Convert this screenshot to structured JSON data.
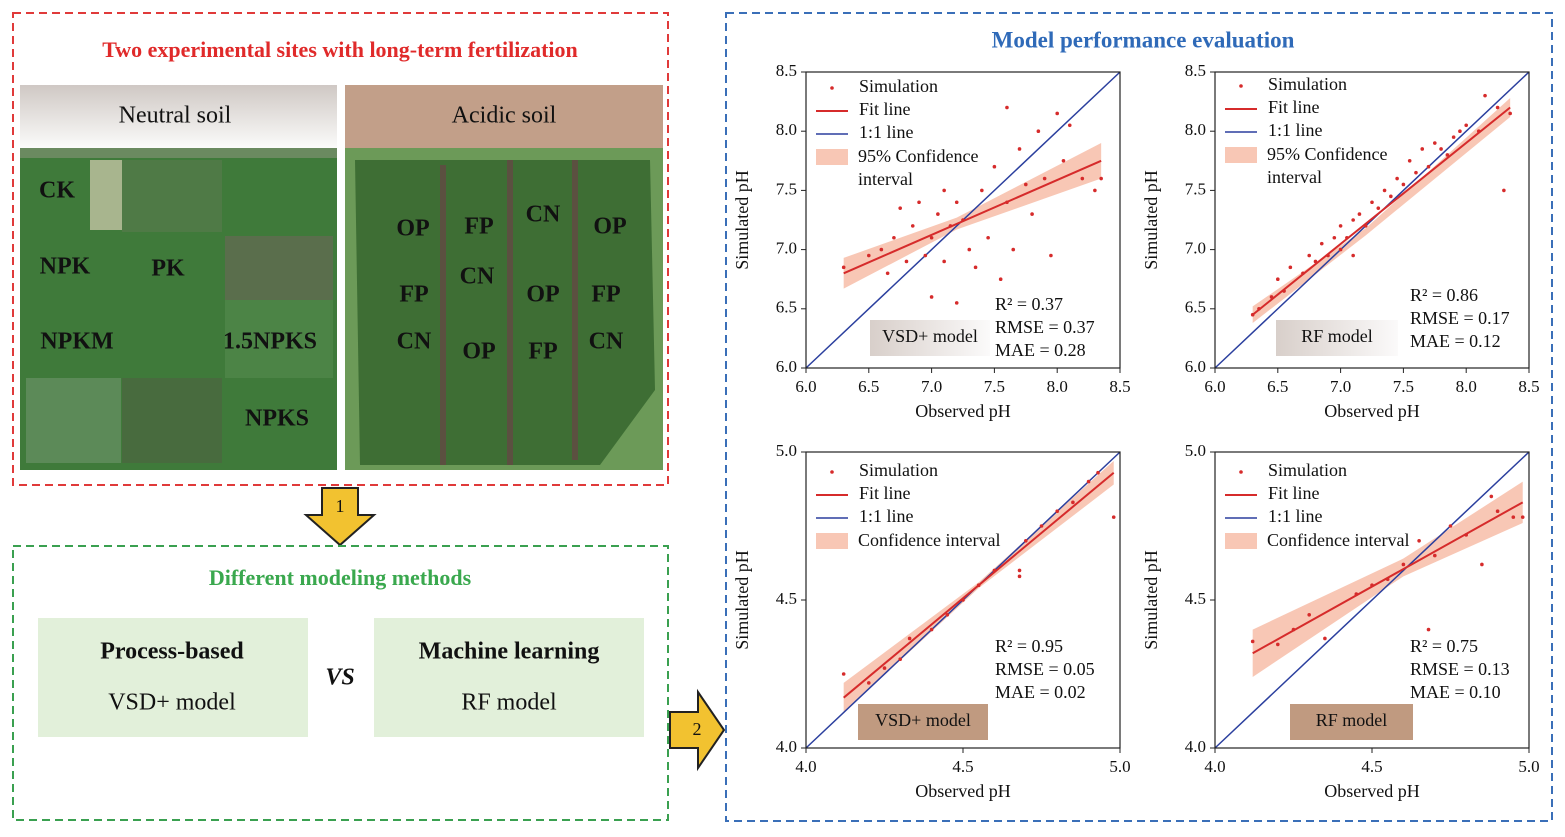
{
  "left_panel": {
    "title": "Two experimental sites with long-term fertilization",
    "sites": [
      {
        "header": "Neutral soil",
        "plots": [
          "CK",
          "NPK",
          "PK",
          "NPKM",
          "1.5NPKS",
          "NPKS"
        ]
      },
      {
        "header": "Acidic soil",
        "plots": [
          "OP",
          "FP",
          "CN",
          "OP",
          "CN",
          "FP",
          "OP",
          "FP",
          "CN",
          "OP",
          "FP",
          "CN"
        ]
      }
    ]
  },
  "arrows": [
    "1",
    "2"
  ],
  "methods_panel": {
    "title": "Different modeling methods",
    "separator": "VS",
    "methods": [
      {
        "title": "Process-based",
        "model": "VSD+ model"
      },
      {
        "title": "Machine learning",
        "model": "RF model"
      }
    ]
  },
  "right_panel": {
    "title": "Model performance evaluation"
  },
  "chart_data": [
    {
      "type": "scatter",
      "xlabel": "Observed pH",
      "ylabel": "Simulated pH",
      "model_label": "VSD+ model",
      "stats": [
        "R² = 0.37",
        "RMSE = 0.37",
        "MAE = 0.28"
      ],
      "xlim": [
        6.0,
        8.5
      ],
      "ylim": [
        6.0,
        8.5
      ],
      "xticks": [
        {
          "value": 6,
          "label": "6.0"
        },
        {
          "value": 6.5,
          "label": "6.5"
        },
        {
          "value": 7,
          "label": "7.0"
        },
        {
          "value": 7.5,
          "label": "7.5"
        },
        {
          "value": 8,
          "label": "8.0"
        },
        {
          "value": 8.5,
          "label": "8.5"
        }
      ],
      "yticks": [
        {
          "value": 6,
          "label": "6.0"
        },
        {
          "value": 6.5,
          "label": "6.5"
        },
        {
          "value": 7,
          "label": "7.0"
        },
        {
          "value": 7.5,
          "label": "7.5"
        },
        {
          "value": 8,
          "label": "8.0"
        },
        {
          "value": 8.5,
          "label": "8.5"
        }
      ],
      "series": [
        {
          "name": "Simulation",
          "color": "#d62b2b",
          "x": [
            6.3,
            6.5,
            6.6,
            6.65,
            6.7,
            6.75,
            6.8,
            6.85,
            6.9,
            6.95,
            7.0,
            7.0,
            7.05,
            7.1,
            7.1,
            7.15,
            7.2,
            7.2,
            7.25,
            7.3,
            7.35,
            7.4,
            7.45,
            7.5,
            7.55,
            7.6,
            7.6,
            7.65,
            7.7,
            7.75,
            7.8,
            7.85,
            7.9,
            7.95,
            8.0,
            8.05,
            8.1,
            8.2,
            8.3,
            8.35
          ],
          "values": [
            6.85,
            6.95,
            7.0,
            6.8,
            7.1,
            7.35,
            6.9,
            7.2,
            7.4,
            6.95,
            7.1,
            6.6,
            7.3,
            7.5,
            6.9,
            7.2,
            6.55,
            7.4,
            7.25,
            7.0,
            6.85,
            7.5,
            7.1,
            7.7,
            6.75,
            8.2,
            7.4,
            7.0,
            7.85,
            7.55,
            7.3,
            8.0,
            7.6,
            6.95,
            8.15,
            7.75,
            8.05,
            7.6,
            7.5,
            7.6
          ]
        }
      ],
      "fit_line": {
        "name": "Fit line",
        "color": "#d62b2b",
        "x": [
          6.3,
          8.35
        ],
        "values": [
          6.8,
          7.75
        ]
      },
      "identity_line": {
        "name": "1:1 line",
        "color": "#2b3f9e"
      },
      "band": {
        "name": "95% Confidence interval",
        "color": "#f5b49c",
        "x": [
          6.3,
          7.2,
          8.35
        ],
        "lower": [
          6.67,
          7.17,
          7.6
        ],
        "upper": [
          6.93,
          7.27,
          7.9
        ]
      }
    },
    {
      "type": "scatter",
      "xlabel": "Observed pH",
      "ylabel": "Simulated pH",
      "model_label": "RF model",
      "stats": [
        "R² = 0.86",
        "RMSE = 0.17",
        "MAE = 0.12"
      ],
      "xlim": [
        6.0,
        8.5
      ],
      "ylim": [
        6.0,
        8.5
      ],
      "xticks": [
        {
          "value": 6,
          "label": "6.0"
        },
        {
          "value": 6.5,
          "label": "6.5"
        },
        {
          "value": 7,
          "label": "7.0"
        },
        {
          "value": 7.5,
          "label": "7.5"
        },
        {
          "value": 8,
          "label": "8.0"
        },
        {
          "value": 8.5,
          "label": "8.5"
        }
      ],
      "yticks": [
        {
          "value": 6,
          "label": "6.0"
        },
        {
          "value": 6.5,
          "label": "6.5"
        },
        {
          "value": 7,
          "label": "7.0"
        },
        {
          "value": 7.5,
          "label": "7.5"
        },
        {
          "value": 8,
          "label": "8.0"
        },
        {
          "value": 8.5,
          "label": "8.5"
        }
      ],
      "series": [
        {
          "name": "Simulation",
          "color": "#d62b2b",
          "x": [
            6.3,
            6.35,
            6.45,
            6.5,
            6.55,
            6.6,
            6.7,
            6.75,
            6.8,
            6.85,
            6.9,
            6.95,
            7.0,
            7.0,
            7.05,
            7.1,
            7.1,
            7.15,
            7.2,
            7.25,
            7.3,
            7.35,
            7.4,
            7.45,
            7.5,
            7.55,
            7.6,
            7.65,
            7.7,
            7.75,
            7.8,
            7.85,
            7.9,
            7.95,
            8.0,
            8.1,
            8.15,
            8.25,
            8.3,
            8.35
          ],
          "values": [
            6.45,
            6.5,
            6.6,
            6.75,
            6.65,
            6.85,
            6.8,
            6.95,
            6.9,
            7.05,
            6.95,
            7.1,
            7.0,
            7.2,
            7.1,
            6.95,
            7.25,
            7.3,
            7.2,
            7.4,
            7.35,
            7.5,
            7.45,
            7.6,
            7.55,
            7.75,
            7.65,
            7.85,
            7.7,
            7.9,
            7.85,
            7.8,
            7.95,
            8.0,
            8.05,
            8.0,
            8.3,
            8.2,
            7.5,
            8.15
          ]
        }
      ],
      "fit_line": {
        "name": "Fit line",
        "color": "#d62b2b",
        "x": [
          6.3,
          8.35
        ],
        "values": [
          6.45,
          8.2
        ]
      },
      "identity_line": {
        "name": "1:1 line",
        "color": "#2b3f9e"
      },
      "band": {
        "name": "95% Confidence interval",
        "color": "#f5b49c",
        "x": [
          6.3,
          7.2,
          8.35
        ],
        "lower": [
          6.38,
          7.12,
          8.12
        ],
        "upper": [
          6.52,
          7.18,
          8.28
        ]
      }
    },
    {
      "type": "scatter",
      "xlabel": "Observed pH",
      "ylabel": "Simulated pH",
      "model_label": "VSD+ model",
      "stats": [
        "R² = 0.95",
        "RMSE = 0.05",
        "MAE = 0.02"
      ],
      "xlim": [
        4.0,
        5.0
      ],
      "ylim": [
        4.0,
        5.0
      ],
      "xticks": [
        {
          "value": 4,
          "label": "4.0"
        },
        4.5,
        {
          "value": 5,
          "label": "5.0"
        }
      ],
      "yticks": [
        {
          "value": 4,
          "label": "4.0"
        },
        4.5,
        {
          "value": 5,
          "label": "5.0"
        }
      ],
      "series": [
        {
          "name": "Simulation",
          "color": "#d62b2b",
          "x": [
            4.12,
            4.2,
            4.25,
            4.3,
            4.33,
            4.4,
            4.45,
            4.5,
            4.55,
            4.6,
            4.68,
            4.68,
            4.7,
            4.75,
            4.8,
            4.85,
            4.9,
            4.93,
            4.98
          ],
          "values": [
            4.25,
            4.22,
            4.27,
            4.3,
            4.37,
            4.4,
            4.45,
            4.5,
            4.55,
            4.6,
            4.6,
            4.58,
            4.7,
            4.75,
            4.8,
            4.83,
            4.9,
            4.93,
            4.78
          ]
        }
      ],
      "fit_line": {
        "name": "Fit line",
        "color": "#d62b2b",
        "x": [
          4.12,
          4.98
        ],
        "values": [
          4.17,
          4.93
        ]
      },
      "identity_line": {
        "name": "1:1 line",
        "color": "#2b3f9e"
      },
      "band": {
        "name": "Confidence interval",
        "color": "#f5b49c",
        "x": [
          4.12,
          4.55,
          4.98
        ],
        "lower": [
          4.12,
          4.54,
          4.89
        ],
        "upper": [
          4.22,
          4.56,
          4.97
        ]
      }
    },
    {
      "type": "scatter",
      "xlabel": "Observed pH",
      "ylabel": "Simulated pH",
      "model_label": "RF model",
      "stats": [
        "R² = 0.75",
        "RMSE = 0.13",
        "MAE = 0.10"
      ],
      "xlim": [
        4.0,
        5.0
      ],
      "ylim": [
        4.0,
        5.0
      ],
      "xticks": [
        {
          "value": 4,
          "label": "4.0"
        },
        4.5,
        {
          "value": 5,
          "label": "5.0"
        }
      ],
      "yticks": [
        {
          "value": 4,
          "label": "4.0"
        },
        4.5,
        {
          "value": 5,
          "label": "5.0"
        }
      ],
      "series": [
        {
          "name": "Simulation",
          "color": "#d62b2b",
          "x": [
            4.12,
            4.2,
            4.25,
            4.3,
            4.35,
            4.45,
            4.5,
            4.55,
            4.6,
            4.65,
            4.68,
            4.7,
            4.75,
            4.8,
            4.85,
            4.88,
            4.9,
            4.95,
            4.98
          ],
          "values": [
            4.36,
            4.35,
            4.4,
            4.45,
            4.37,
            4.52,
            4.55,
            4.57,
            4.62,
            4.7,
            4.4,
            4.65,
            4.75,
            4.72,
            4.62,
            4.85,
            4.8,
            4.78,
            4.78
          ]
        }
      ],
      "fit_line": {
        "name": "Fit line",
        "color": "#d62b2b",
        "x": [
          4.12,
          4.98
        ],
        "values": [
          4.32,
          4.83
        ]
      },
      "identity_line": {
        "name": "1:1 line",
        "color": "#2b3f9e"
      },
      "band": {
        "name": "Confidence interval",
        "color": "#f5b49c",
        "x": [
          4.12,
          4.6,
          4.98
        ],
        "lower": [
          4.24,
          4.58,
          4.76
        ],
        "upper": [
          4.4,
          4.64,
          4.9
        ]
      }
    }
  ]
}
